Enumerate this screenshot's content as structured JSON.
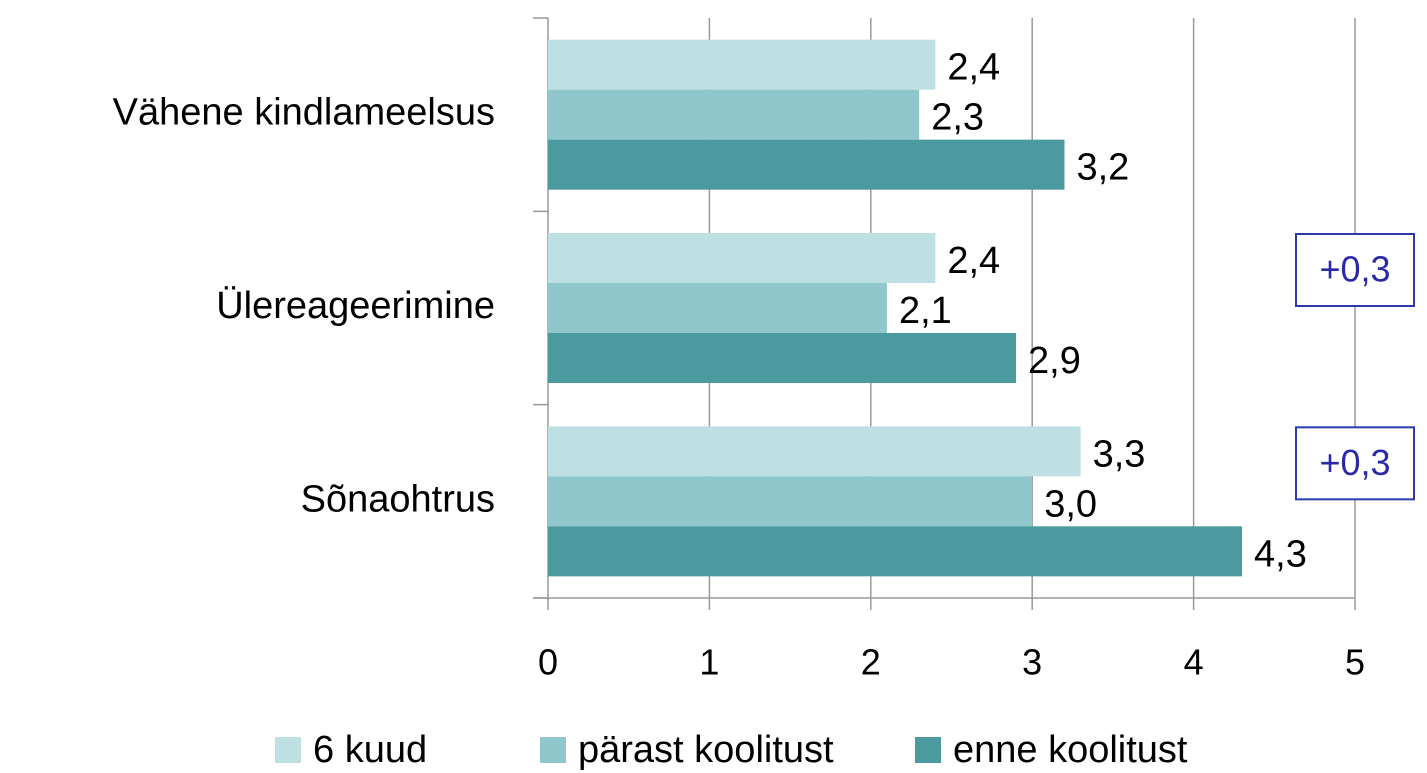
{
  "chart_data": {
    "type": "barh",
    "categories": [
      "Vähene kindlameelsus",
      "Ülereageerimine",
      "Sõnaohtrus"
    ],
    "series": [
      {
        "name": "6 kuud",
        "color": "#bfe0e3",
        "values": [
          2.4,
          2.4,
          3.3
        ],
        "value_labels": [
          "2,4",
          "2,4",
          "3,3"
        ]
      },
      {
        "name": "pärast koolitust",
        "color": "#8fc7cd",
        "values": [
          2.3,
          2.1,
          3.0
        ],
        "value_labels": [
          "2,3",
          "2,1",
          "3,0"
        ]
      },
      {
        "name": "enne koolitust",
        "color": "#4a9aa0",
        "values": [
          3.2,
          2.9,
          4.3
        ],
        "value_labels": [
          "3,2",
          "2,9",
          "4,3"
        ]
      }
    ],
    "xlim": [
      0,
      5
    ],
    "xticks": [
      0,
      1,
      2,
      3,
      4,
      5
    ],
    "grid": true,
    "legend": "bottom",
    "annotations": [
      {
        "text": "+0,3",
        "category": 1
      },
      {
        "text": "+0,3",
        "category": 2
      }
    ]
  }
}
